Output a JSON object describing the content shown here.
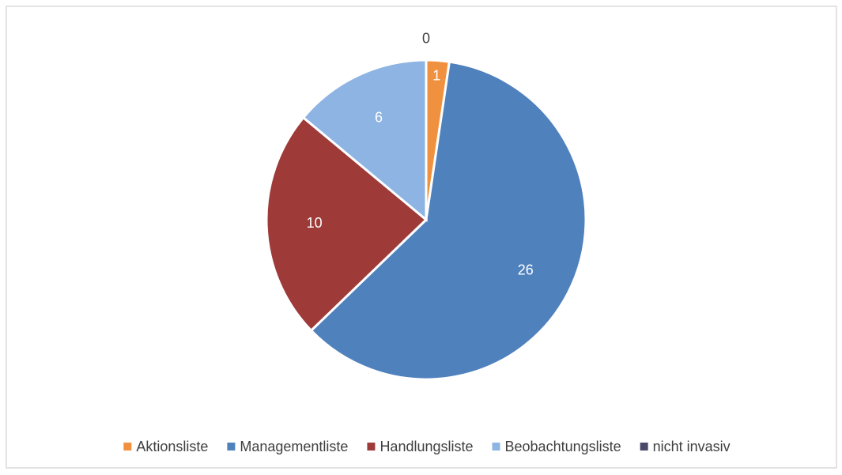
{
  "chart_data": {
    "type": "pie",
    "categories": [
      "Aktionsliste",
      "Managementliste",
      "Handlungsliste",
      "Beobachtungsliste",
      "nicht invasiv"
    ],
    "values": [
      1,
      26,
      10,
      6,
      0
    ],
    "colors": [
      "#F0913F",
      "#4F81BD",
      "#9E3A38",
      "#8DB4E2",
      "#4B4A6B"
    ],
    "legend": "bottom"
  }
}
